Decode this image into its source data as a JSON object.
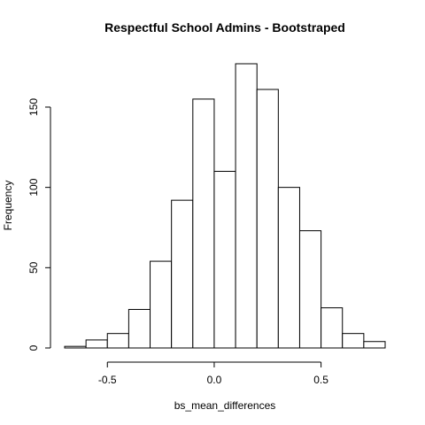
{
  "chart_data": {
    "type": "bar",
    "title": "Respectful School Admins - Bootstraped",
    "xlabel": "bs_mean_differences",
    "ylabel": "Frequency",
    "bin_edges": [
      -0.7,
      -0.6,
      -0.5,
      -0.4,
      -0.3,
      -0.2,
      -0.1,
      0.0,
      0.1,
      0.2,
      0.3,
      0.4,
      0.5,
      0.6,
      0.7,
      0.8
    ],
    "values": [
      1,
      5,
      9,
      24,
      54,
      92,
      155,
      110,
      177,
      161,
      100,
      73,
      25,
      9,
      4
    ],
    "xlim": [
      -0.7,
      0.8
    ],
    "ylim": [
      0,
      177
    ],
    "x_ticks": [
      {
        "value": -0.5,
        "label": "-0.5"
      },
      {
        "value": 0.0,
        "label": "0.0"
      },
      {
        "value": 0.5,
        "label": "0.5"
      }
    ],
    "y_ticks": [
      {
        "value": 0,
        "label": "0"
      },
      {
        "value": 50,
        "label": "50"
      },
      {
        "value": 100,
        "label": "100"
      },
      {
        "value": 150,
        "label": "150"
      }
    ],
    "grid": false,
    "fill_color": "#ffffff",
    "stroke_color": "#000000"
  }
}
